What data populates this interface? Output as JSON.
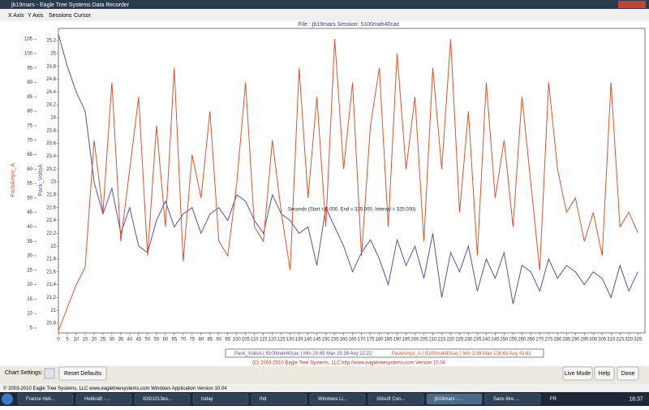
{
  "window": {
    "title": "jb19mars - Eagle Tree Systems Data Recorder",
    "menu": [
      "X Axis",
      "Y Axis",
      "Sessions",
      "Cursor"
    ]
  },
  "chart_data": {
    "type": "line",
    "title": "File : jb19mars   Session: 5100mah40cac",
    "xlabel": "Seconds (Start = 0.000, End = 325.000, Interval = 325.000)",
    "x": [
      0,
      5,
      10,
      15,
      20,
      25,
      30,
      35,
      40,
      45,
      50,
      55,
      60,
      65,
      70,
      75,
      80,
      85,
      90,
      95,
      100,
      105,
      110,
      115,
      120,
      125,
      130,
      135,
      140,
      145,
      150,
      155,
      160,
      165,
      170,
      175,
      180,
      185,
      190,
      195,
      200,
      205,
      210,
      215,
      220,
      225,
      230,
      235,
      240,
      245,
      250,
      255,
      260,
      265,
      270,
      275,
      280,
      285,
      290,
      295,
      300,
      305,
      310,
      315,
      320,
      325
    ],
    "xlim": [
      0,
      329
    ],
    "xticks": [
      0,
      5,
      10,
      15,
      20,
      25,
      30,
      35,
      40,
      45,
      50,
      55,
      60,
      65,
      70,
      75,
      80,
      85,
      90,
      95,
      100,
      105,
      110,
      115,
      120,
      125,
      130,
      135,
      140,
      145,
      150,
      155,
      160,
      165,
      170,
      175,
      180,
      185,
      190,
      195,
      200,
      205,
      210,
      215,
      220,
      225,
      230,
      235,
      240,
      245,
      250,
      255,
      260,
      265,
      270,
      275,
      280,
      285,
      290,
      295,
      300,
      305,
      310,
      315,
      320,
      325
    ],
    "ylim": [
      20.65,
      25.39
    ],
    "yticks": [
      {
        "value": 20.8,
        "label": "20,8"
      },
      21,
      {
        "value": 21.2,
        "label": "21,2"
      },
      {
        "value": 21.4,
        "label": "21,4"
      },
      {
        "value": 21.6,
        "label": "21,6"
      },
      {
        "value": 21.8,
        "label": "21,8"
      },
      22,
      {
        "value": 22.2,
        "label": "22,2"
      },
      {
        "value": 22.4,
        "label": "22,4"
      },
      {
        "value": 22.6,
        "label": "22,6"
      },
      {
        "value": 22.8,
        "label": "22,8"
      },
      23,
      {
        "value": 23.2,
        "label": "23,2"
      },
      {
        "value": 23.4,
        "label": "23,4"
      },
      {
        "value": 23.6,
        "label": "23,6"
      },
      {
        "value": 23.8,
        "label": "23,8"
      },
      24,
      {
        "value": 24.2,
        "label": "24,2"
      },
      {
        "value": 24.4,
        "label": "24,4"
      },
      {
        "value": 24.6,
        "label": "24,6"
      },
      {
        "value": 24.8,
        "label": "24,8"
      },
      25,
      {
        "value": 25.2,
        "label": "25,2"
      }
    ],
    "y2lim": [
      3.3,
      108.7
    ],
    "y2ticks": [
      5,
      10,
      15,
      20,
      25,
      30,
      35,
      40,
      45,
      50,
      55,
      60,
      65,
      70,
      75,
      80,
      85,
      90,
      95,
      100,
      105
    ],
    "series": [
      {
        "name": "Pack_VoltsA",
        "color": "#5a4fa0",
        "values": [
          25.3,
          24.8,
          24.4,
          24.1,
          23.0,
          22.5,
          22.9,
          22.2,
          22.6,
          22.0,
          21.9,
          22.4,
          22.7,
          22.3,
          22.5,
          22.6,
          22.2,
          22.5,
          22.6,
          22.4,
          22.8,
          22.7,
          22.4,
          22.2,
          22.8,
          22.5,
          22.4,
          22.2,
          22.3,
          21.7,
          22.6,
          22.3,
          22.0,
          21.6,
          21.9,
          22.1,
          21.8,
          21.4,
          22.1,
          21.7,
          22.0,
          21.5,
          22.2,
          21.2,
          21.9,
          21.6,
          22.0,
          21.3,
          21.8,
          21.5,
          21.9,
          21.1,
          21.7,
          21.6,
          21.3,
          21.8,
          21.5,
          21.7,
          21.6,
          21.4,
          21.6,
          21.5,
          21.2,
          21.7,
          21.3,
          21.6
        ]
      },
      {
        "name": "PackAmps_A",
        "color": "#d9542b",
        "axis": "y2",
        "values": [
          4,
          12,
          20,
          26,
          70,
          45,
          90,
          35,
          60,
          85,
          30,
          75,
          40,
          95,
          28,
          65,
          50,
          80,
          35,
          30,
          55,
          90,
          40,
          35,
          70,
          45,
          25,
          95,
          50,
          85,
          40,
          105,
          60,
          90,
          30,
          75,
          95,
          40,
          100,
          60,
          85,
          35,
          95,
          60,
          105,
          45,
          80,
          30,
          90,
          50,
          70,
          40,
          85,
          55,
          25,
          90,
          60,
          45,
          50,
          35,
          45,
          30,
          90,
          40,
          45,
          38
        ]
      }
    ],
    "legend_entries": [
      "Pack_VoltsA ( 5100mah40cac )   Min 20.65   Max 25.38   Avg 22.22",
      "PackAmps_A ( 5100mah40cac )   Min 3.59   Max 108.63   Avg 43.62"
    ],
    "credit": "(C) 2003-2010 Eagle Tree Systems, LLC     http://www.eagletreesystems.com     Version 10.04"
  },
  "controls": {
    "chart_settings": "Chart Settings:",
    "reset": "Reset Defaults",
    "live": "Live Mode",
    "help": "Help",
    "done": "Done"
  },
  "status": "© 2003-2010 Eagle Tree Systems, LLC    www.eagletreesystems.com    Windows Application Version 10.04",
  "taskbar": {
    "items": [
      "France Heli...",
      "Helikraft - ...",
      "IOI01013es...",
      "today",
      "thd",
      "Windows Li...",
      "Xilisoft Con...",
      "jb19mars - ...",
      "Sans titre ..."
    ],
    "lang": "FR",
    "clock": "18:37"
  }
}
